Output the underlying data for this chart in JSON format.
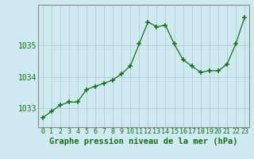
{
  "x": [
    0,
    1,
    2,
    3,
    4,
    5,
    6,
    7,
    8,
    9,
    10,
    11,
    12,
    13,
    14,
    15,
    16,
    17,
    18,
    19,
    20,
    21,
    22,
    23
  ],
  "y": [
    1032.7,
    1032.9,
    1033.1,
    1033.2,
    1033.2,
    1033.6,
    1033.7,
    1033.8,
    1033.9,
    1034.1,
    1034.35,
    1035.05,
    1035.75,
    1035.6,
    1035.65,
    1035.05,
    1034.55,
    1034.35,
    1034.15,
    1034.2,
    1034.2,
    1034.4,
    1035.05,
    1035.9
  ],
  "line_color": "#1a6e1a",
  "marker_color": "#1a6e1a",
  "background_color": "#ceeaf0",
  "grid_color": "#b0ccd8",
  "xlabel": "Graphe pression niveau de la mer (hPa)",
  "ylim": [
    1032.4,
    1036.3
  ],
  "xlim": [
    -0.5,
    23.5
  ],
  "yticks": [
    1033,
    1034,
    1035
  ],
  "xticks": [
    0,
    1,
    2,
    3,
    4,
    5,
    6,
    7,
    8,
    9,
    10,
    11,
    12,
    13,
    14,
    15,
    16,
    17,
    18,
    19,
    20,
    21,
    22,
    23
  ],
  "label_color": "#1a6e1a",
  "tick_color": "#1a6e1a",
  "xlabel_fontsize": 7.5,
  "xlabel_fontweight": "bold",
  "tick_fontsize": 6.0,
  "ytick_fontsize": 7.0
}
